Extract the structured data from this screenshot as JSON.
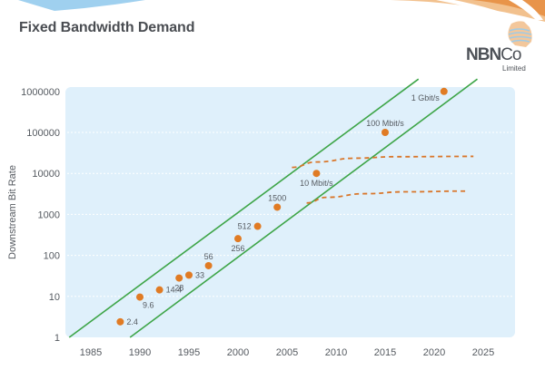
{
  "slide": {
    "title": "Fixed Bandwidth Demand",
    "logo": {
      "name": "NBN",
      "name_suffix": "Co",
      "subtitle": "Limited"
    }
  },
  "colors": {
    "plot_background": "#dff0fb",
    "gridline": "#ffffff",
    "points": "#e07b24",
    "trend_lines": "#3ea548",
    "projection_lines": "#d9762a",
    "text": "#555a60"
  },
  "chart_data": {
    "type": "scatter",
    "title": "Fixed Bandwidth Demand",
    "xlabel": "",
    "ylabel": "Downstream Bit Rate",
    "xlim": [
      1982.5,
      2028
    ],
    "ylim": [
      1,
      1000000
    ],
    "yscale": "log",
    "grid": "horizontal dashed",
    "x_ticks": [
      1985,
      1990,
      1995,
      2000,
      2005,
      2010,
      2015,
      2020,
      2025
    ],
    "y_ticks": [
      1,
      10,
      100,
      1000,
      10000,
      100000,
      1000000
    ],
    "y_tick_labels": [
      "1",
      "10",
      "100",
      "1000",
      "10000",
      "100000",
      "1000000"
    ],
    "points": [
      {
        "x": 1988,
        "y": 2.4,
        "label": "2.4",
        "label_pos": "right"
      },
      {
        "x": 1990,
        "y": 9.6,
        "label": "9.6",
        "label_pos": "below-right"
      },
      {
        "x": 1992,
        "y": 14.4,
        "label": "14.4",
        "label_pos": "right"
      },
      {
        "x": 1994,
        "y": 28,
        "label": "28",
        "label_pos": "below"
      },
      {
        "x": 1995,
        "y": 33,
        "label": "33",
        "label_pos": "right"
      },
      {
        "x": 1997,
        "y": 56,
        "label": "56",
        "label_pos": "above"
      },
      {
        "x": 2000,
        "y": 256,
        "label": "256",
        "label_pos": "below"
      },
      {
        "x": 2002,
        "y": 512,
        "label": "512",
        "label_pos": "left"
      },
      {
        "x": 2004,
        "y": 1500,
        "label": "1500",
        "label_pos": "above"
      },
      {
        "x": 2008,
        "y": 10000,
        "label": "10 Mbit/s",
        "label_pos": "below"
      },
      {
        "x": 2015,
        "y": 100000,
        "label": "100 Mbit/s",
        "label_pos": "above"
      },
      {
        "x": 2021,
        "y": 1000000,
        "label": "1 Gbit/s",
        "label_pos": "below-left"
      }
    ],
    "trend_lines": [
      {
        "name": "upper-trend-line",
        "from": [
          1982.8,
          1
        ],
        "to": [
          2018.4,
          2000000
        ]
      },
      {
        "name": "lower-trend-line",
        "from": [
          1989.0,
          1
        ],
        "to": [
          2024.4,
          2000000
        ]
      }
    ],
    "projection_curves": [
      {
        "name": "upper-projection-curve",
        "points": [
          [
            2005.5,
            14000
          ],
          [
            2008,
            19000
          ],
          [
            2012,
            23500
          ],
          [
            2016,
            25500
          ],
          [
            2024,
            26000
          ]
        ]
      },
      {
        "name": "lower-projection-curve",
        "points": [
          [
            2007,
            1900
          ],
          [
            2009,
            2600
          ],
          [
            2013,
            3200
          ],
          [
            2017,
            3550
          ],
          [
            2023.2,
            3700
          ]
        ]
      }
    ]
  }
}
